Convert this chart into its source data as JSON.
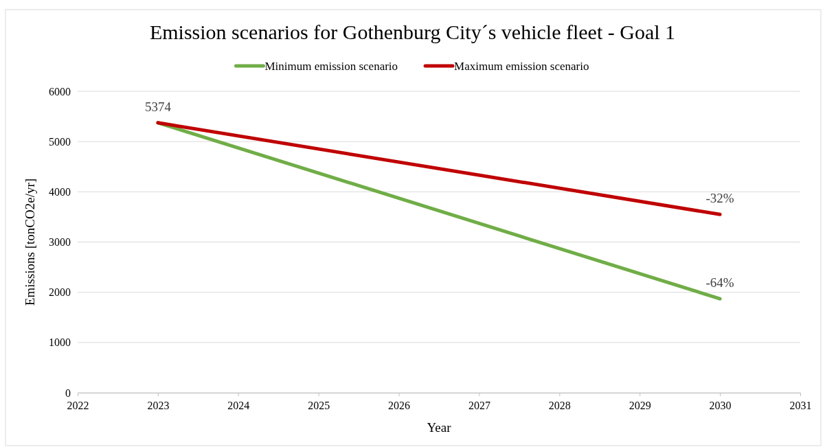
{
  "chart_data": {
    "type": "line",
    "title": "Emission scenarios for Gothenburg City´s vehicle fleet - Goal 1",
    "xlabel": "Year",
    "ylabel": "Emissions [tonCO2e/yr]",
    "x": [
      2023,
      2030
    ],
    "series": [
      {
        "name": "Minimum emission scenario",
        "color": "#70ad47",
        "values": [
          5374,
          1870
        ],
        "value_labels": [
          "5374",
          null
        ]
      },
      {
        "name": "Maximum emission scenario",
        "color": "#c00000",
        "values": [
          5374,
          3550
        ]
      }
    ],
    "xlim": [
      2022,
      2031
    ],
    "xticks": [
      2022,
      2023,
      2024,
      2025,
      2026,
      2027,
      2028,
      2029,
      2030,
      2031
    ],
    "ylim": [
      0,
      6000
    ],
    "yticks": [
      0,
      1000,
      2000,
      3000,
      4000,
      5000,
      6000
    ],
    "grid": "y",
    "legend": "top",
    "marker": "none",
    "line_style": "solid",
    "annotations": [
      {
        "text": "-32%",
        "x": 2030,
        "y": 3550
      },
      {
        "text": "-64%",
        "x": 2030,
        "y": 1870
      }
    ]
  }
}
